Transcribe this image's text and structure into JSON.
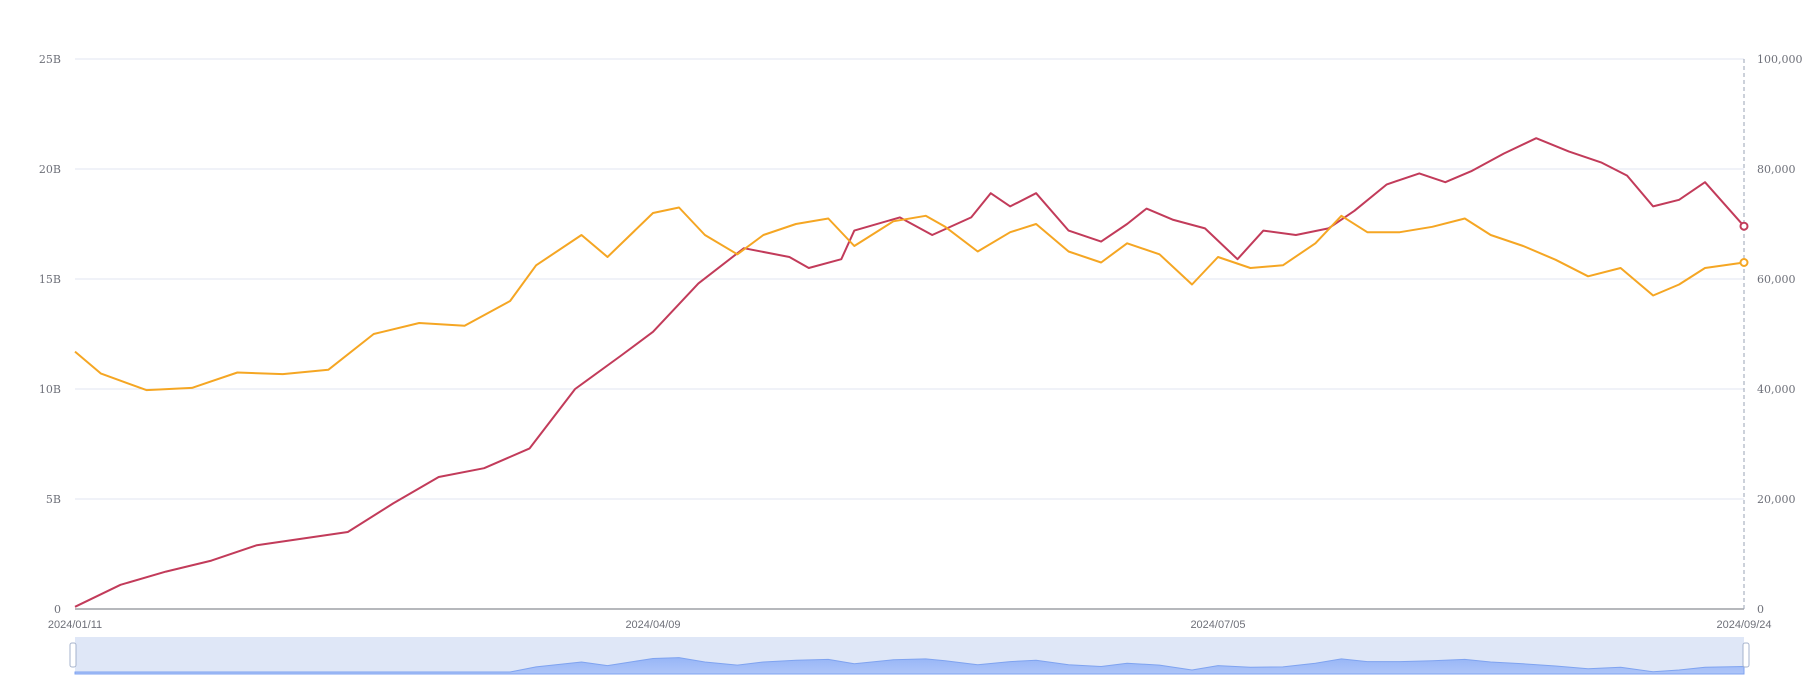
{
  "chart_data": {
    "type": "line",
    "title": "",
    "xlabel": "",
    "ylabel": "",
    "x_range": [
      "2024/01/11",
      "2024/09/24"
    ],
    "x_tick_labels": [
      "2024/01/11",
      "2024/04/09",
      "2024/07/05",
      "2024/09/24"
    ],
    "y_left": {
      "min": 0,
      "max": 25,
      "unit": "B",
      "ticks": [
        "0",
        "5B",
        "10B",
        "15B",
        "20B",
        "25B"
      ]
    },
    "y_right": {
      "min": 0,
      "max": 100000,
      "ticks": [
        "0",
        "20,000",
        "40,000",
        "60,000",
        "80,000",
        "100,000"
      ]
    },
    "grid": true,
    "legend": "none",
    "data_zoom_slider": true,
    "series": [
      {
        "axis": "left",
        "color": "#c23b5a",
        "points": [
          [
            "2024/01/11",
            0.1
          ],
          [
            "2024/01/18",
            1.1
          ],
          [
            "2024/01/25",
            1.7
          ],
          [
            "2024/02/01",
            2.2
          ],
          [
            "2024/02/08",
            2.9
          ],
          [
            "2024/02/15",
            3.2
          ],
          [
            "2024/02/22",
            3.5
          ],
          [
            "2024/02/29",
            4.8
          ],
          [
            "2024/03/07",
            6.0
          ],
          [
            "2024/03/14",
            6.4
          ],
          [
            "2024/03/21",
            7.3
          ],
          [
            "2024/03/28",
            10.0
          ],
          [
            "2024/04/04",
            11.5
          ],
          [
            "2024/04/09",
            12.6
          ],
          [
            "2024/04/16",
            14.8
          ],
          [
            "2024/04/23",
            16.4
          ],
          [
            "2024/04/30",
            16.0
          ],
          [
            "2024/05/03",
            15.5
          ],
          [
            "2024/05/08",
            15.9
          ],
          [
            "2024/05/10",
            17.2
          ],
          [
            "2024/05/17",
            17.8
          ],
          [
            "2024/05/22",
            17.0
          ],
          [
            "2024/05/28",
            17.8
          ],
          [
            "2024/05/31",
            18.9
          ],
          [
            "2024/06/03",
            18.3
          ],
          [
            "2024/06/07",
            18.9
          ],
          [
            "2024/06/12",
            17.2
          ],
          [
            "2024/06/17",
            16.7
          ],
          [
            "2024/06/21",
            17.5
          ],
          [
            "2024/06/24",
            18.2
          ],
          [
            "2024/06/28",
            17.7
          ],
          [
            "2024/07/03",
            17.3
          ],
          [
            "2024/07/08",
            15.9
          ],
          [
            "2024/07/12",
            17.2
          ],
          [
            "2024/07/17",
            17.0
          ],
          [
            "2024/07/22",
            17.3
          ],
          [
            "2024/07/26",
            18.1
          ],
          [
            "2024/07/31",
            19.3
          ],
          [
            "2024/08/05",
            19.8
          ],
          [
            "2024/08/09",
            19.4
          ],
          [
            "2024/08/13",
            19.9
          ],
          [
            "2024/08/18",
            20.7
          ],
          [
            "2024/08/23",
            21.4
          ],
          [
            "2024/08/28",
            20.8
          ],
          [
            "2024/09/02",
            20.3
          ],
          [
            "2024/09/06",
            19.7
          ],
          [
            "2024/09/10",
            18.3
          ],
          [
            "2024/09/14",
            18.6
          ],
          [
            "2024/09/18",
            19.4
          ],
          [
            "2024/09/24",
            17.4
          ]
        ]
      },
      {
        "axis": "right",
        "color": "#f5a623",
        "points": [
          [
            "2024/01/11",
            46800
          ],
          [
            "2024/01/15",
            42800
          ],
          [
            "2024/01/22",
            39800
          ],
          [
            "2024/01/29",
            40200
          ],
          [
            "2024/02/05",
            43000
          ],
          [
            "2024/02/12",
            42700
          ],
          [
            "2024/02/19",
            43500
          ],
          [
            "2024/02/26",
            50000
          ],
          [
            "2024/03/04",
            52000
          ],
          [
            "2024/03/11",
            51500
          ],
          [
            "2024/03/18",
            56000
          ],
          [
            "2024/03/22",
            62500
          ],
          [
            "2024/03/29",
            68000
          ],
          [
            "2024/04/02",
            64000
          ],
          [
            "2024/04/09",
            72000
          ],
          [
            "2024/04/13",
            73000
          ],
          [
            "2024/04/17",
            68000
          ],
          [
            "2024/04/22",
            64500
          ],
          [
            "2024/04/26",
            68000
          ],
          [
            "2024/05/01",
            70000
          ],
          [
            "2024/05/06",
            71000
          ],
          [
            "2024/05/10",
            66000
          ],
          [
            "2024/05/16",
            70500
          ],
          [
            "2024/05/21",
            71500
          ],
          [
            "2024/05/24",
            69500
          ],
          [
            "2024/05/29",
            65000
          ],
          [
            "2024/06/03",
            68500
          ],
          [
            "2024/06/07",
            70000
          ],
          [
            "2024/06/12",
            65000
          ],
          [
            "2024/06/17",
            63000
          ],
          [
            "2024/06/21",
            66500
          ],
          [
            "2024/06/26",
            64500
          ],
          [
            "2024/07/01",
            59000
          ],
          [
            "2024/07/05",
            64000
          ],
          [
            "2024/07/10",
            62000
          ],
          [
            "2024/07/15",
            62500
          ],
          [
            "2024/07/20",
            66500
          ],
          [
            "2024/07/24",
            71500
          ],
          [
            "2024/07/28",
            68500
          ],
          [
            "2024/08/02",
            68500
          ],
          [
            "2024/08/07",
            69500
          ],
          [
            "2024/08/12",
            71000
          ],
          [
            "2024/08/16",
            68000
          ],
          [
            "2024/08/21",
            66000
          ],
          [
            "2024/08/26",
            63500
          ],
          [
            "2024/08/31",
            60500
          ],
          [
            "2024/09/05",
            62000
          ],
          [
            "2024/09/10",
            57000
          ],
          [
            "2024/09/14",
            59000
          ],
          [
            "2024/09/18",
            62000
          ],
          [
            "2024/09/24",
            63000
          ]
        ]
      }
    ]
  }
}
